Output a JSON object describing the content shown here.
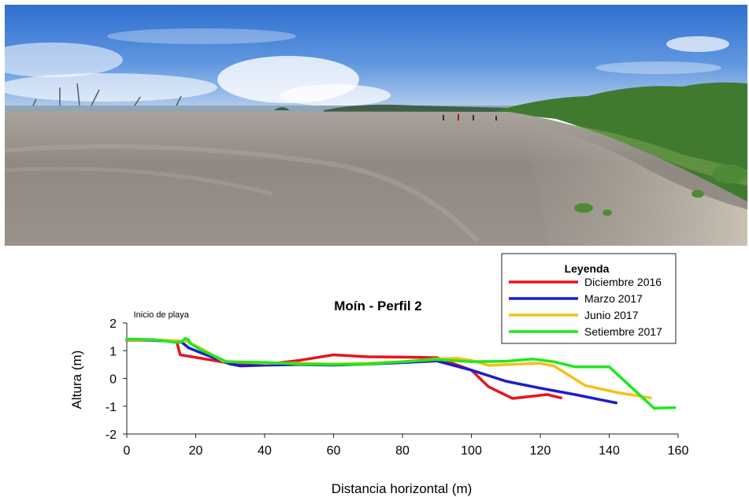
{
  "photo": {
    "description_icon": "beach-panorama-photo"
  },
  "chart_data": {
    "type": "line",
    "title": "Moín - Perfil 2",
    "xlabel": "Distancia horizontal (m)",
    "ylabel": "Altura (m)",
    "xlim": [
      0,
      160
    ],
    "ylim": [
      -2,
      2
    ],
    "xticks": [
      "0",
      "20",
      "40",
      "60",
      "80",
      "100",
      "120",
      "140",
      "160"
    ],
    "yticks": [
      "2",
      "1",
      "0",
      "-1",
      "-2"
    ],
    "grid": false,
    "annotation": {
      "text": "Inicio de playa",
      "x": 10,
      "y": 2.2
    },
    "legend": {
      "title": "Leyenda",
      "placement": "top-right"
    },
    "series": [
      {
        "name": "Diciembre 2016",
        "color": "#e8141b",
        "points": [
          [
            0,
            1.38
          ],
          [
            10,
            1.38
          ],
          [
            14.5,
            1.32
          ],
          [
            15.5,
            0.85
          ],
          [
            30,
            0.55
          ],
          [
            40,
            0.5
          ],
          [
            50,
            0.65
          ],
          [
            60,
            0.85
          ],
          [
            70,
            0.78
          ],
          [
            80,
            0.77
          ],
          [
            90,
            0.75
          ],
          [
            100,
            0.3
          ],
          [
            105,
            -0.3
          ],
          [
            112,
            -0.72
          ],
          [
            122,
            -0.58
          ],
          [
            126,
            -0.7
          ]
        ]
      },
      {
        "name": "Marzo 2017",
        "color": "#1c1ccc",
        "points": [
          [
            0,
            1.4
          ],
          [
            12,
            1.35
          ],
          [
            16,
            1.3
          ],
          [
            18,
            1.1
          ],
          [
            22,
            0.9
          ],
          [
            30,
            0.52
          ],
          [
            33,
            0.45
          ],
          [
            40,
            0.48
          ],
          [
            50,
            0.5
          ],
          [
            60,
            0.48
          ],
          [
            70,
            0.52
          ],
          [
            80,
            0.57
          ],
          [
            90,
            0.63
          ],
          [
            100,
            0.3
          ],
          [
            110,
            -0.1
          ],
          [
            120,
            -0.35
          ],
          [
            130,
            -0.58
          ],
          [
            142,
            -0.88
          ]
        ]
      },
      {
        "name": "Junio 2017",
        "color": "#f5c014",
        "points": [
          [
            0,
            1.4
          ],
          [
            10,
            1.38
          ],
          [
            17,
            1.35
          ],
          [
            18,
            1.3
          ],
          [
            22,
            1.05
          ],
          [
            28,
            0.62
          ],
          [
            40,
            0.55
          ],
          [
            50,
            0.55
          ],
          [
            60,
            0.52
          ],
          [
            70,
            0.55
          ],
          [
            80,
            0.6
          ],
          [
            90,
            0.7
          ],
          [
            96,
            0.73
          ],
          [
            100,
            0.65
          ],
          [
            105,
            0.47
          ],
          [
            120,
            0.55
          ],
          [
            124,
            0.45
          ],
          [
            133,
            -0.25
          ],
          [
            142,
            -0.5
          ],
          [
            152,
            -0.7
          ]
        ]
      },
      {
        "name": "Setiembre 2017",
        "color": "#1ee81e",
        "points": [
          [
            0,
            1.42
          ],
          [
            8,
            1.4
          ],
          [
            14,
            1.3
          ],
          [
            16,
            1.32
          ],
          [
            17,
            1.45
          ],
          [
            18,
            1.38
          ],
          [
            18.5,
            1.25
          ],
          [
            22,
            1.0
          ],
          [
            29,
            0.6
          ],
          [
            40,
            0.58
          ],
          [
            50,
            0.52
          ],
          [
            60,
            0.5
          ],
          [
            70,
            0.52
          ],
          [
            80,
            0.6
          ],
          [
            90,
            0.68
          ],
          [
            100,
            0.6
          ],
          [
            110,
            0.62
          ],
          [
            118,
            0.7
          ],
          [
            124,
            0.6
          ],
          [
            130,
            0.42
          ],
          [
            140,
            0.42
          ],
          [
            153,
            -1.07
          ],
          [
            159,
            -1.05
          ]
        ]
      }
    ]
  }
}
